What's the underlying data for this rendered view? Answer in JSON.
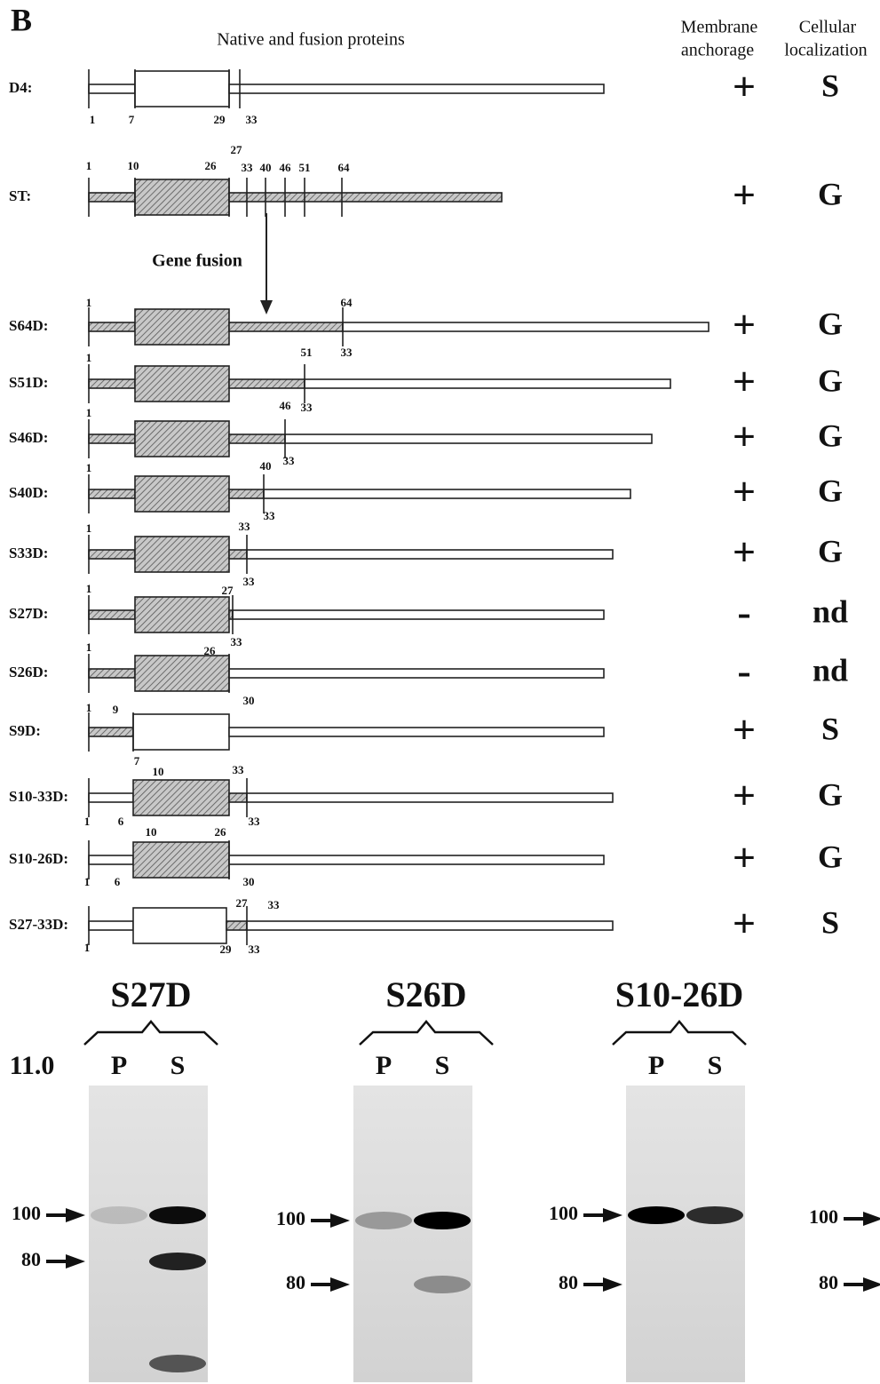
{
  "panel_label": "B",
  "header": {
    "title": "Native and fusion proteins",
    "columns": [
      [
        "Membrane",
        "anchorage"
      ],
      [
        "Cellular",
        "localization"
      ]
    ]
  },
  "annotation": "Gene fusion",
  "constructs": [
    {
      "name": "D4:",
      "anchorage": "+",
      "localization": "S",
      "positions": [
        "1",
        "7",
        "29",
        "33"
      ]
    },
    {
      "name": "ST:",
      "anchorage": "+",
      "localization": "G",
      "positions": [
        "1",
        "10",
        "26",
        "27",
        "33",
        "40",
        "46",
        "51",
        "64"
      ]
    },
    {
      "name": "S64D:",
      "anchorage": "+",
      "localization": "G",
      "positions": [
        "1",
        "64",
        "33"
      ]
    },
    {
      "name": "S51D:",
      "anchorage": "+",
      "localization": "G",
      "positions": [
        "1",
        "51",
        "33"
      ]
    },
    {
      "name": "S46D:",
      "anchorage": "+",
      "localization": "G",
      "positions": [
        "1",
        "46",
        "33"
      ]
    },
    {
      "name": "S40D:",
      "anchorage": "+",
      "localization": "G",
      "positions": [
        "1",
        "40",
        "33"
      ]
    },
    {
      "name": "S33D:",
      "anchorage": "+",
      "localization": "G",
      "positions": [
        "1",
        "33",
        "33"
      ]
    },
    {
      "name": "S27D:",
      "anchorage": "-",
      "localization": "nd",
      "positions": [
        "1",
        "27",
        "33"
      ]
    },
    {
      "name": "S26D:",
      "anchorage": "-",
      "localization": "nd",
      "positions": [
        "1",
        "26",
        "30"
      ]
    },
    {
      "name": "S9D:",
      "anchorage": "+",
      "localization": "S",
      "positions": [
        "1",
        "9",
        "7"
      ]
    },
    {
      "name": "S10-33D:",
      "anchorage": "+",
      "localization": "G",
      "positions": [
        "10",
        "33",
        "1",
        "6",
        "33"
      ]
    },
    {
      "name": "S10-26D:",
      "anchorage": "+",
      "localization": "G",
      "positions": [
        "10",
        "26",
        "1",
        "6",
        "30"
      ]
    },
    {
      "name": "S27-33D:",
      "anchorage": "+",
      "localization": "S",
      "positions": [
        "27",
        "33",
        "29",
        "1",
        "33"
      ]
    }
  ],
  "blots": {
    "ph_label": "11.0",
    "gels": [
      {
        "title": "S27D",
        "lanes": [
          "P",
          "S"
        ],
        "markers": [
          "100",
          "80"
        ]
      },
      {
        "title": "S26D",
        "lanes": [
          "P",
          "S"
        ],
        "markers": [
          "100",
          "80"
        ]
      },
      {
        "title": "S10-26D",
        "lanes": [
          "P",
          "S"
        ],
        "markers": [
          "100",
          "80"
        ]
      }
    ],
    "reference_markers": [
      "100",
      "80"
    ]
  }
}
